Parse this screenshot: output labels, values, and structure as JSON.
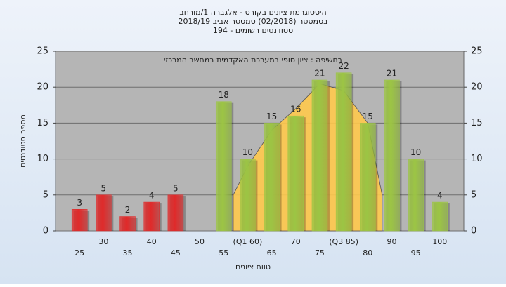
{
  "chart_data": {
    "type": "bar",
    "title": "היסטוגרמת ציונים בקורס - אלגברה 1/מורחב",
    "subtitle": "בסמסטר (02/2018) סמסטר אביב 2018/19",
    "subtitle2": "סטודנטים רשומים - 194",
    "annotation": "בחשיפה : ציון סופי במערכת האקדמית במחשב המרכזי",
    "x_label": "טווח ציונים",
    "y_label": "מספר סטודנטים",
    "categories": [
      "25",
      "30",
      "35",
      "40",
      "45",
      "50",
      "55",
      "(Q1 60)",
      "65",
      "70",
      "75",
      "(Q3 85)",
      "80",
      "90",
      "95",
      "100"
    ],
    "values": [
      3,
      5,
      2,
      4,
      5,
      null,
      18,
      10,
      15,
      16,
      21,
      22,
      15,
      21,
      10,
      4
    ],
    "colors": [
      "#e02a2a",
      "#e02a2a",
      "#e02a2a",
      "#e02a2a",
      "#e02a2a",
      null,
      "#9cc544",
      "#9cc544",
      "#9cc544",
      "#9cc544",
      "#9cc544",
      "#9cc544",
      "#9cc544",
      "#9cc544",
      "#9cc544",
      "#9cc544"
    ],
    "curve": {
      "color": "#ffc94d",
      "x": [
        57,
        60,
        65,
        70,
        75,
        80,
        85,
        88
      ],
      "values": [
        5,
        9,
        14,
        17,
        20.5,
        19.5,
        15,
        5
      ]
    },
    "xlim": [
      20,
      105
    ],
    "ylim": [
      0,
      25
    ],
    "yticks": [
      0,
      5,
      10,
      15,
      20,
      25
    ],
    "y2lim": [
      0,
      25
    ],
    "y2ticks": [
      0,
      5,
      10,
      15,
      20,
      25
    ],
    "grid": true
  }
}
